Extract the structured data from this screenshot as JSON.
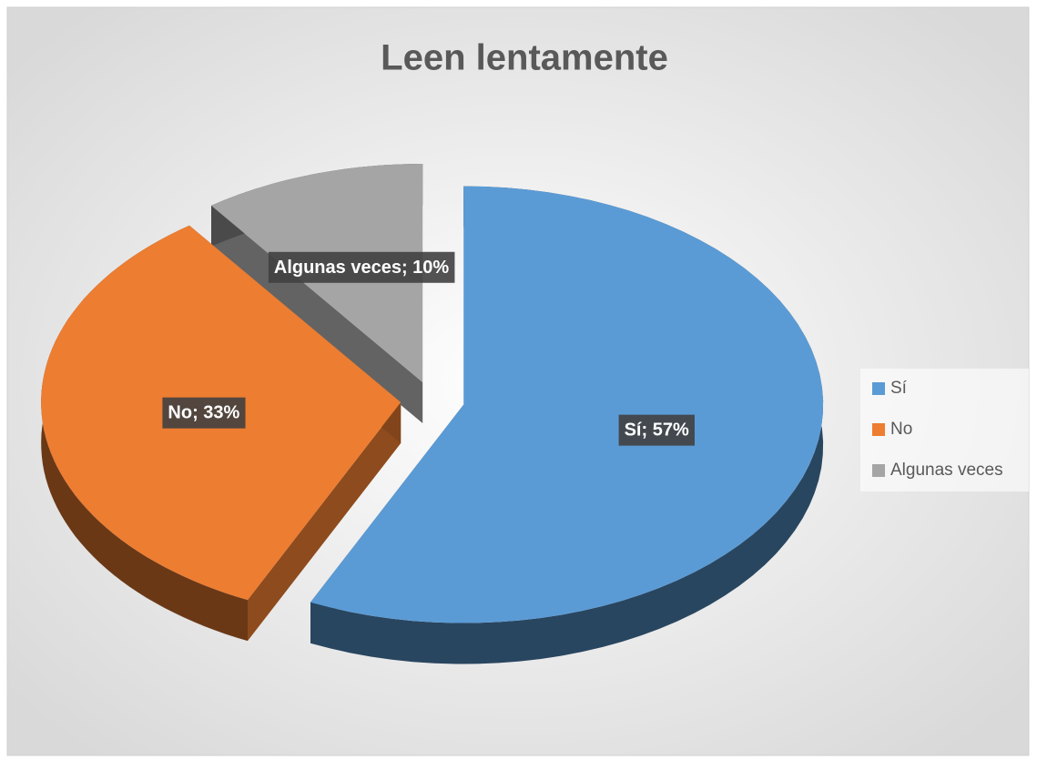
{
  "chart_data": {
    "type": "pie",
    "title": "Leen lentamente",
    "categories": [
      "Sí",
      "No",
      "Algunas veces"
    ],
    "values": [
      57,
      33,
      10
    ],
    "value_labels": [
      "Sí; 57%",
      "No; 33%",
      "Algunas veces; 10%"
    ],
    "colors": [
      "#5b9bd5",
      "#ed7d31",
      "#a5a5a5"
    ],
    "legend": "right"
  }
}
